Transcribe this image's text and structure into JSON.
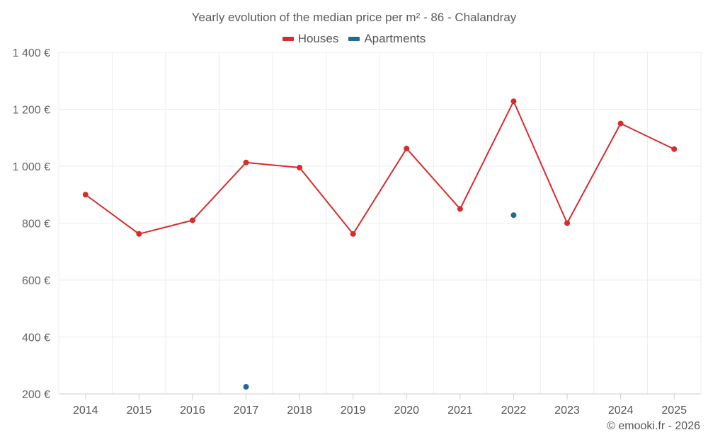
{
  "chart_data": {
    "type": "line",
    "title": "Yearly evolution of the median price per m² - 86 - Chalandray",
    "categories": [
      "2014",
      "2015",
      "2016",
      "2017",
      "2018",
      "2019",
      "2020",
      "2021",
      "2022",
      "2023",
      "2024",
      "2025"
    ],
    "y_ticks": [
      200,
      400,
      600,
      800,
      1000,
      1200,
      1400
    ],
    "y_tick_labels": [
      "200 €",
      "400 €",
      "600 €",
      "800 €",
      "1 000 €",
      "1 200 €",
      "1 400 €"
    ],
    "ylim": [
      200,
      1400
    ],
    "grid": true,
    "legend_position": "top-center",
    "series": [
      {
        "name": "Houses",
        "color": "#d62c2c",
        "values": [
          900,
          762,
          810,
          1013,
          995,
          762,
          1062,
          850,
          1228,
          800,
          1150,
          1060
        ]
      },
      {
        "name": "Apartments",
        "color": "#1f6a99",
        "values": [
          null,
          null,
          null,
          225,
          null,
          null,
          null,
          null,
          828,
          null,
          null,
          null
        ]
      }
    ],
    "credit": "© emooki.fr - 2026"
  }
}
